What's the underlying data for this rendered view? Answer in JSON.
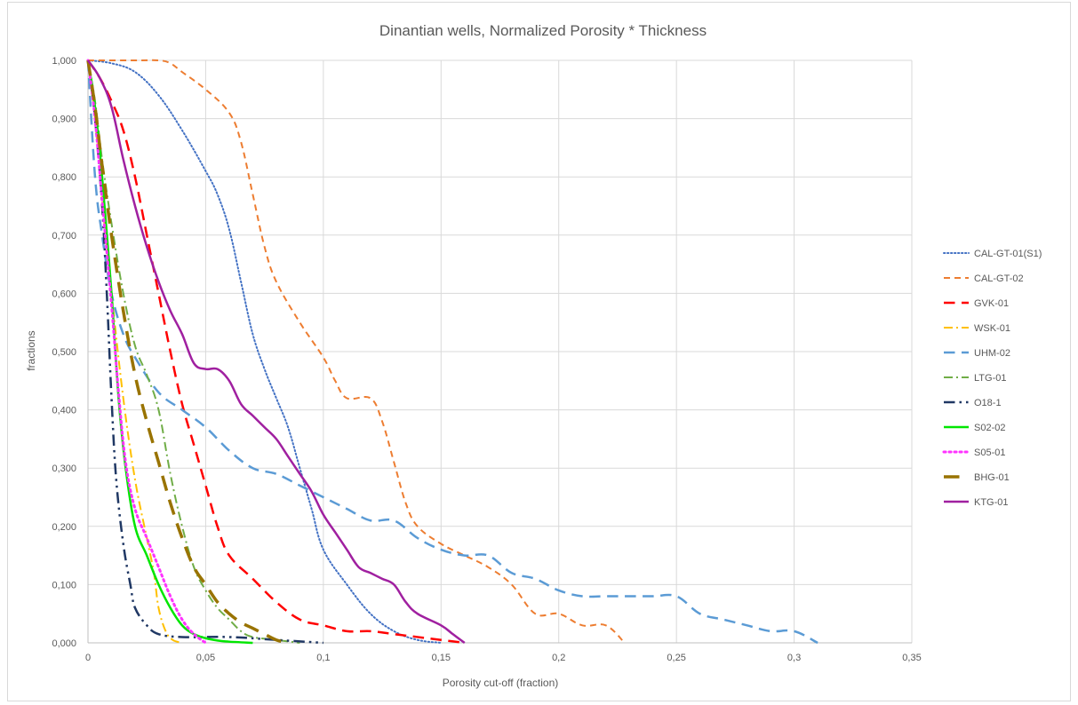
{
  "chart_data": {
    "type": "line",
    "title": "Dinantian wells, Normalized Porosity * Thickness",
    "xlabel": "Porosity cut-off (fraction)",
    "ylabel": "fractions",
    "xlim": [
      0,
      0.35
    ],
    "ylim": [
      0,
      1
    ],
    "x_ticks": [
      0,
      0.05,
      0.1,
      0.15,
      0.2,
      0.25,
      0.3,
      0.35
    ],
    "x_tick_labels": [
      "0",
      "0,05",
      "0,1",
      "0,15",
      "0,2",
      "0,25",
      "0,3",
      "0,35"
    ],
    "y_ticks": [
      0,
      0.1,
      0.2,
      0.3,
      0.4,
      0.5,
      0.6,
      0.7,
      0.8,
      0.9,
      1.0
    ],
    "y_tick_labels": [
      "0,000",
      "0,100",
      "0,200",
      "0,300",
      "0,400",
      "0,500",
      "0,600",
      "0,700",
      "0,800",
      "0,900",
      "1,000"
    ],
    "grid": "vertical and horizontal",
    "legend_position": "right",
    "series": [
      {
        "name": "CAL-GT-01(S1)",
        "color": "#4472C4",
        "dash": "dot",
        "width": 2,
        "points": [
          [
            0,
            1
          ],
          [
            0.01,
            0.995
          ],
          [
            0.02,
            0.98
          ],
          [
            0.03,
            0.94
          ],
          [
            0.04,
            0.88
          ],
          [
            0.05,
            0.81
          ],
          [
            0.055,
            0.77
          ],
          [
            0.06,
            0.71
          ],
          [
            0.065,
            0.62
          ],
          [
            0.07,
            0.53
          ],
          [
            0.075,
            0.47
          ],
          [
            0.08,
            0.42
          ],
          [
            0.085,
            0.37
          ],
          [
            0.09,
            0.3
          ],
          [
            0.095,
            0.23
          ],
          [
            0.1,
            0.16
          ],
          [
            0.11,
            0.1
          ],
          [
            0.12,
            0.05
          ],
          [
            0.13,
            0.02
          ],
          [
            0.14,
            0.005
          ],
          [
            0.15,
            0
          ]
        ]
      },
      {
        "name": "CAL-GT-02",
        "color": "#ED7D31",
        "dash": "dash",
        "width": 2,
        "points": [
          [
            0,
            1
          ],
          [
            0.02,
            1
          ],
          [
            0.03,
            1
          ],
          [
            0.035,
            0.995
          ],
          [
            0.04,
            0.98
          ],
          [
            0.05,
            0.95
          ],
          [
            0.06,
            0.91
          ],
          [
            0.065,
            0.86
          ],
          [
            0.07,
            0.77
          ],
          [
            0.075,
            0.68
          ],
          [
            0.08,
            0.62
          ],
          [
            0.09,
            0.55
          ],
          [
            0.1,
            0.49
          ],
          [
            0.105,
            0.45
          ],
          [
            0.11,
            0.42
          ],
          [
            0.12,
            0.42
          ],
          [
            0.125,
            0.38
          ],
          [
            0.13,
            0.31
          ],
          [
            0.135,
            0.24
          ],
          [
            0.14,
            0.2
          ],
          [
            0.15,
            0.17
          ],
          [
            0.16,
            0.15
          ],
          [
            0.17,
            0.13
          ],
          [
            0.18,
            0.1
          ],
          [
            0.19,
            0.05
          ],
          [
            0.2,
            0.05
          ],
          [
            0.21,
            0.03
          ],
          [
            0.22,
            0.03
          ],
          [
            0.228,
            0
          ]
        ]
      },
      {
        "name": "GVK-01",
        "color": "#FF0000",
        "dash": "longdash",
        "width": 2.5,
        "points": [
          [
            0,
            1
          ],
          [
            0.005,
            0.97
          ],
          [
            0.01,
            0.93
          ],
          [
            0.015,
            0.88
          ],
          [
            0.02,
            0.8
          ],
          [
            0.025,
            0.7
          ],
          [
            0.03,
            0.6
          ],
          [
            0.035,
            0.5
          ],
          [
            0.04,
            0.41
          ],
          [
            0.045,
            0.34
          ],
          [
            0.05,
            0.27
          ],
          [
            0.055,
            0.2
          ],
          [
            0.06,
            0.15
          ],
          [
            0.07,
            0.11
          ],
          [
            0.08,
            0.07
          ],
          [
            0.09,
            0.04
          ],
          [
            0.1,
            0.03
          ],
          [
            0.11,
            0.02
          ],
          [
            0.12,
            0.02
          ],
          [
            0.13,
            0.015
          ],
          [
            0.14,
            0.01
          ],
          [
            0.15,
            0.005
          ],
          [
            0.16,
            0
          ]
        ]
      },
      {
        "name": "WSK-01",
        "color": "#FFC000",
        "dash": "dashdot",
        "width": 2,
        "points": [
          [
            0,
            1
          ],
          [
            0.003,
            0.9
          ],
          [
            0.006,
            0.76
          ],
          [
            0.01,
            0.6
          ],
          [
            0.015,
            0.42
          ],
          [
            0.02,
            0.28
          ],
          [
            0.025,
            0.18
          ],
          [
            0.028,
            0.12
          ],
          [
            0.03,
            0.06
          ],
          [
            0.033,
            0.02
          ],
          [
            0.036,
            0.005
          ],
          [
            0.04,
            0
          ]
        ]
      },
      {
        "name": "UHM-02",
        "color": "#5B9BD5",
        "dash": "longdash",
        "width": 2.5,
        "points": [
          [
            0,
            1
          ],
          [
            0.003,
            0.8
          ],
          [
            0.006,
            0.7
          ],
          [
            0.01,
            0.6
          ],
          [
            0.015,
            0.53
          ],
          [
            0.02,
            0.49
          ],
          [
            0.03,
            0.43
          ],
          [
            0.04,
            0.4
          ],
          [
            0.05,
            0.37
          ],
          [
            0.06,
            0.33
          ],
          [
            0.07,
            0.3
          ],
          [
            0.08,
            0.29
          ],
          [
            0.09,
            0.27
          ],
          [
            0.1,
            0.25
          ],
          [
            0.11,
            0.23
          ],
          [
            0.12,
            0.21
          ],
          [
            0.13,
            0.21
          ],
          [
            0.14,
            0.18
          ],
          [
            0.15,
            0.16
          ],
          [
            0.16,
            0.15
          ],
          [
            0.17,
            0.15
          ],
          [
            0.18,
            0.12
          ],
          [
            0.19,
            0.11
          ],
          [
            0.2,
            0.09
          ],
          [
            0.21,
            0.08
          ],
          [
            0.22,
            0.08
          ],
          [
            0.23,
            0.08
          ],
          [
            0.24,
            0.08
          ],
          [
            0.25,
            0.08
          ],
          [
            0.26,
            0.05
          ],
          [
            0.27,
            0.04
          ],
          [
            0.28,
            0.03
          ],
          [
            0.29,
            0.02
          ],
          [
            0.3,
            0.02
          ],
          [
            0.31,
            0
          ]
        ]
      },
      {
        "name": "LTG-01",
        "color": "#70AD47",
        "dash": "dashdot",
        "width": 2,
        "points": [
          [
            0,
            1
          ],
          [
            0.003,
            0.93
          ],
          [
            0.006,
            0.83
          ],
          [
            0.01,
            0.72
          ],
          [
            0.015,
            0.6
          ],
          [
            0.02,
            0.51
          ],
          [
            0.025,
            0.46
          ],
          [
            0.03,
            0.4
          ],
          [
            0.035,
            0.29
          ],
          [
            0.04,
            0.2
          ],
          [
            0.045,
            0.13
          ],
          [
            0.05,
            0.09
          ],
          [
            0.055,
            0.06
          ],
          [
            0.06,
            0.04
          ],
          [
            0.065,
            0.02
          ],
          [
            0.07,
            0.01
          ],
          [
            0.08,
            0.005
          ],
          [
            0.09,
            0
          ]
        ]
      },
      {
        "name": "O18-1",
        "color": "#203864",
        "dash": "dashdotdot",
        "width": 2.5,
        "points": [
          [
            0,
            1
          ],
          [
            0.003,
            0.9
          ],
          [
            0.006,
            0.75
          ],
          [
            0.008,
            0.6
          ],
          [
            0.01,
            0.42
          ],
          [
            0.012,
            0.28
          ],
          [
            0.015,
            0.17
          ],
          [
            0.018,
            0.1
          ],
          [
            0.02,
            0.06
          ],
          [
            0.025,
            0.03
          ],
          [
            0.03,
            0.015
          ],
          [
            0.04,
            0.01
          ],
          [
            0.06,
            0.01
          ],
          [
            0.08,
            0.005
          ],
          [
            0.1,
            0
          ]
        ]
      },
      {
        "name": "S02-02",
        "color": "#00E600",
        "dash": "solid",
        "width": 2.5,
        "points": [
          [
            0,
            1
          ],
          [
            0.003,
            0.92
          ],
          [
            0.006,
            0.8
          ],
          [
            0.01,
            0.6
          ],
          [
            0.013,
            0.42
          ],
          [
            0.016,
            0.3
          ],
          [
            0.02,
            0.2
          ],
          [
            0.025,
            0.15
          ],
          [
            0.03,
            0.1
          ],
          [
            0.035,
            0.06
          ],
          [
            0.04,
            0.03
          ],
          [
            0.045,
            0.015
          ],
          [
            0.05,
            0.008
          ],
          [
            0.055,
            0.004
          ],
          [
            0.06,
            0.002
          ],
          [
            0.07,
            0
          ]
        ]
      },
      {
        "name": "S05-01",
        "color": "#FF33FF",
        "dash": "dot",
        "width": 3,
        "points": [
          [
            0,
            1
          ],
          [
            0.003,
            0.9
          ],
          [
            0.006,
            0.76
          ],
          [
            0.01,
            0.58
          ],
          [
            0.013,
            0.43
          ],
          [
            0.016,
            0.31
          ],
          [
            0.02,
            0.23
          ],
          [
            0.025,
            0.18
          ],
          [
            0.03,
            0.13
          ],
          [
            0.035,
            0.08
          ],
          [
            0.04,
            0.04
          ],
          [
            0.045,
            0.015
          ],
          [
            0.05,
            0
          ]
        ]
      },
      {
        "name": "BHG-01",
        "color": "#997300",
        "dash": "longdash",
        "width": 3.5,
        "points": [
          [
            0,
            1
          ],
          [
            0.003,
            0.92
          ],
          [
            0.006,
            0.82
          ],
          [
            0.01,
            0.7
          ],
          [
            0.015,
            0.57
          ],
          [
            0.02,
            0.46
          ],
          [
            0.025,
            0.38
          ],
          [
            0.03,
            0.31
          ],
          [
            0.035,
            0.24
          ],
          [
            0.04,
            0.18
          ],
          [
            0.045,
            0.13
          ],
          [
            0.05,
            0.1
          ],
          [
            0.055,
            0.07
          ],
          [
            0.06,
            0.05
          ],
          [
            0.065,
            0.035
          ],
          [
            0.07,
            0.025
          ],
          [
            0.075,
            0.015
          ],
          [
            0.08,
            0.005
          ],
          [
            0.085,
            0
          ]
        ]
      },
      {
        "name": "KTG-01",
        "color": "#A020A0",
        "dash": "solid",
        "width": 2.5,
        "points": [
          [
            0,
            1
          ],
          [
            0.005,
            0.97
          ],
          [
            0.01,
            0.92
          ],
          [
            0.015,
            0.83
          ],
          [
            0.02,
            0.75
          ],
          [
            0.025,
            0.68
          ],
          [
            0.03,
            0.62
          ],
          [
            0.035,
            0.57
          ],
          [
            0.04,
            0.53
          ],
          [
            0.045,
            0.48
          ],
          [
            0.05,
            0.47
          ],
          [
            0.055,
            0.47
          ],
          [
            0.06,
            0.45
          ],
          [
            0.065,
            0.41
          ],
          [
            0.07,
            0.39
          ],
          [
            0.075,
            0.37
          ],
          [
            0.08,
            0.35
          ],
          [
            0.085,
            0.32
          ],
          [
            0.09,
            0.29
          ],
          [
            0.095,
            0.26
          ],
          [
            0.1,
            0.22
          ],
          [
            0.105,
            0.19
          ],
          [
            0.11,
            0.16
          ],
          [
            0.115,
            0.13
          ],
          [
            0.12,
            0.12
          ],
          [
            0.125,
            0.11
          ],
          [
            0.13,
            0.1
          ],
          [
            0.135,
            0.07
          ],
          [
            0.14,
            0.05
          ],
          [
            0.15,
            0.03
          ],
          [
            0.155,
            0.015
          ],
          [
            0.16,
            0
          ]
        ]
      }
    ]
  }
}
